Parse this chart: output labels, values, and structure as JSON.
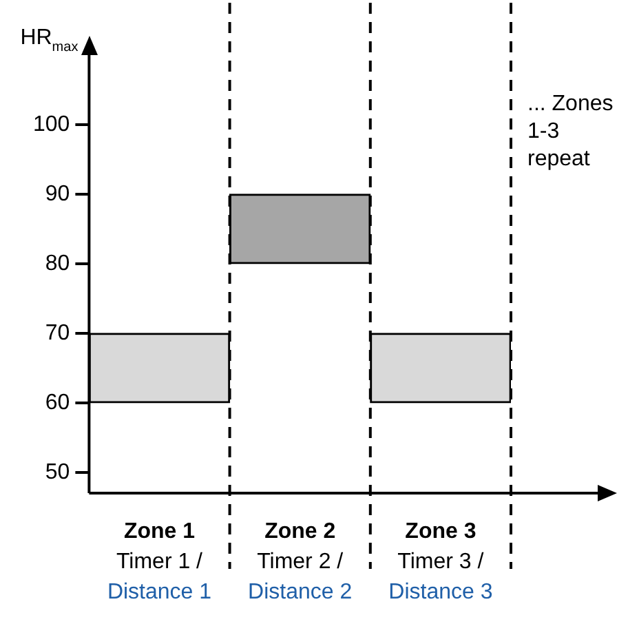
{
  "chart_data": {
    "type": "bar",
    "ylabel": "HR$_{max}$",
    "categories": [
      "Zone 1\nTimer 1 /\nDistance 1",
      "Zone 2\nTimer 2 /\nDistance 2",
      "Zone 3\nTimer 3 /\nDistance 3"
    ],
    "base": [
      60,
      80,
      60
    ],
    "values": [
      10,
      10,
      10
    ],
    "colors": [
      "#d9d9d9",
      "#a6a6a6",
      "#d9d9d9"
    ],
    "ylim": [
      47,
      110
    ],
    "yticks": [
      50,
      60,
      70,
      80,
      90,
      100
    ],
    "grid": "x",
    "annotations": [
      "... Zones\n1-3\nrepeat"
    ]
  }
}
